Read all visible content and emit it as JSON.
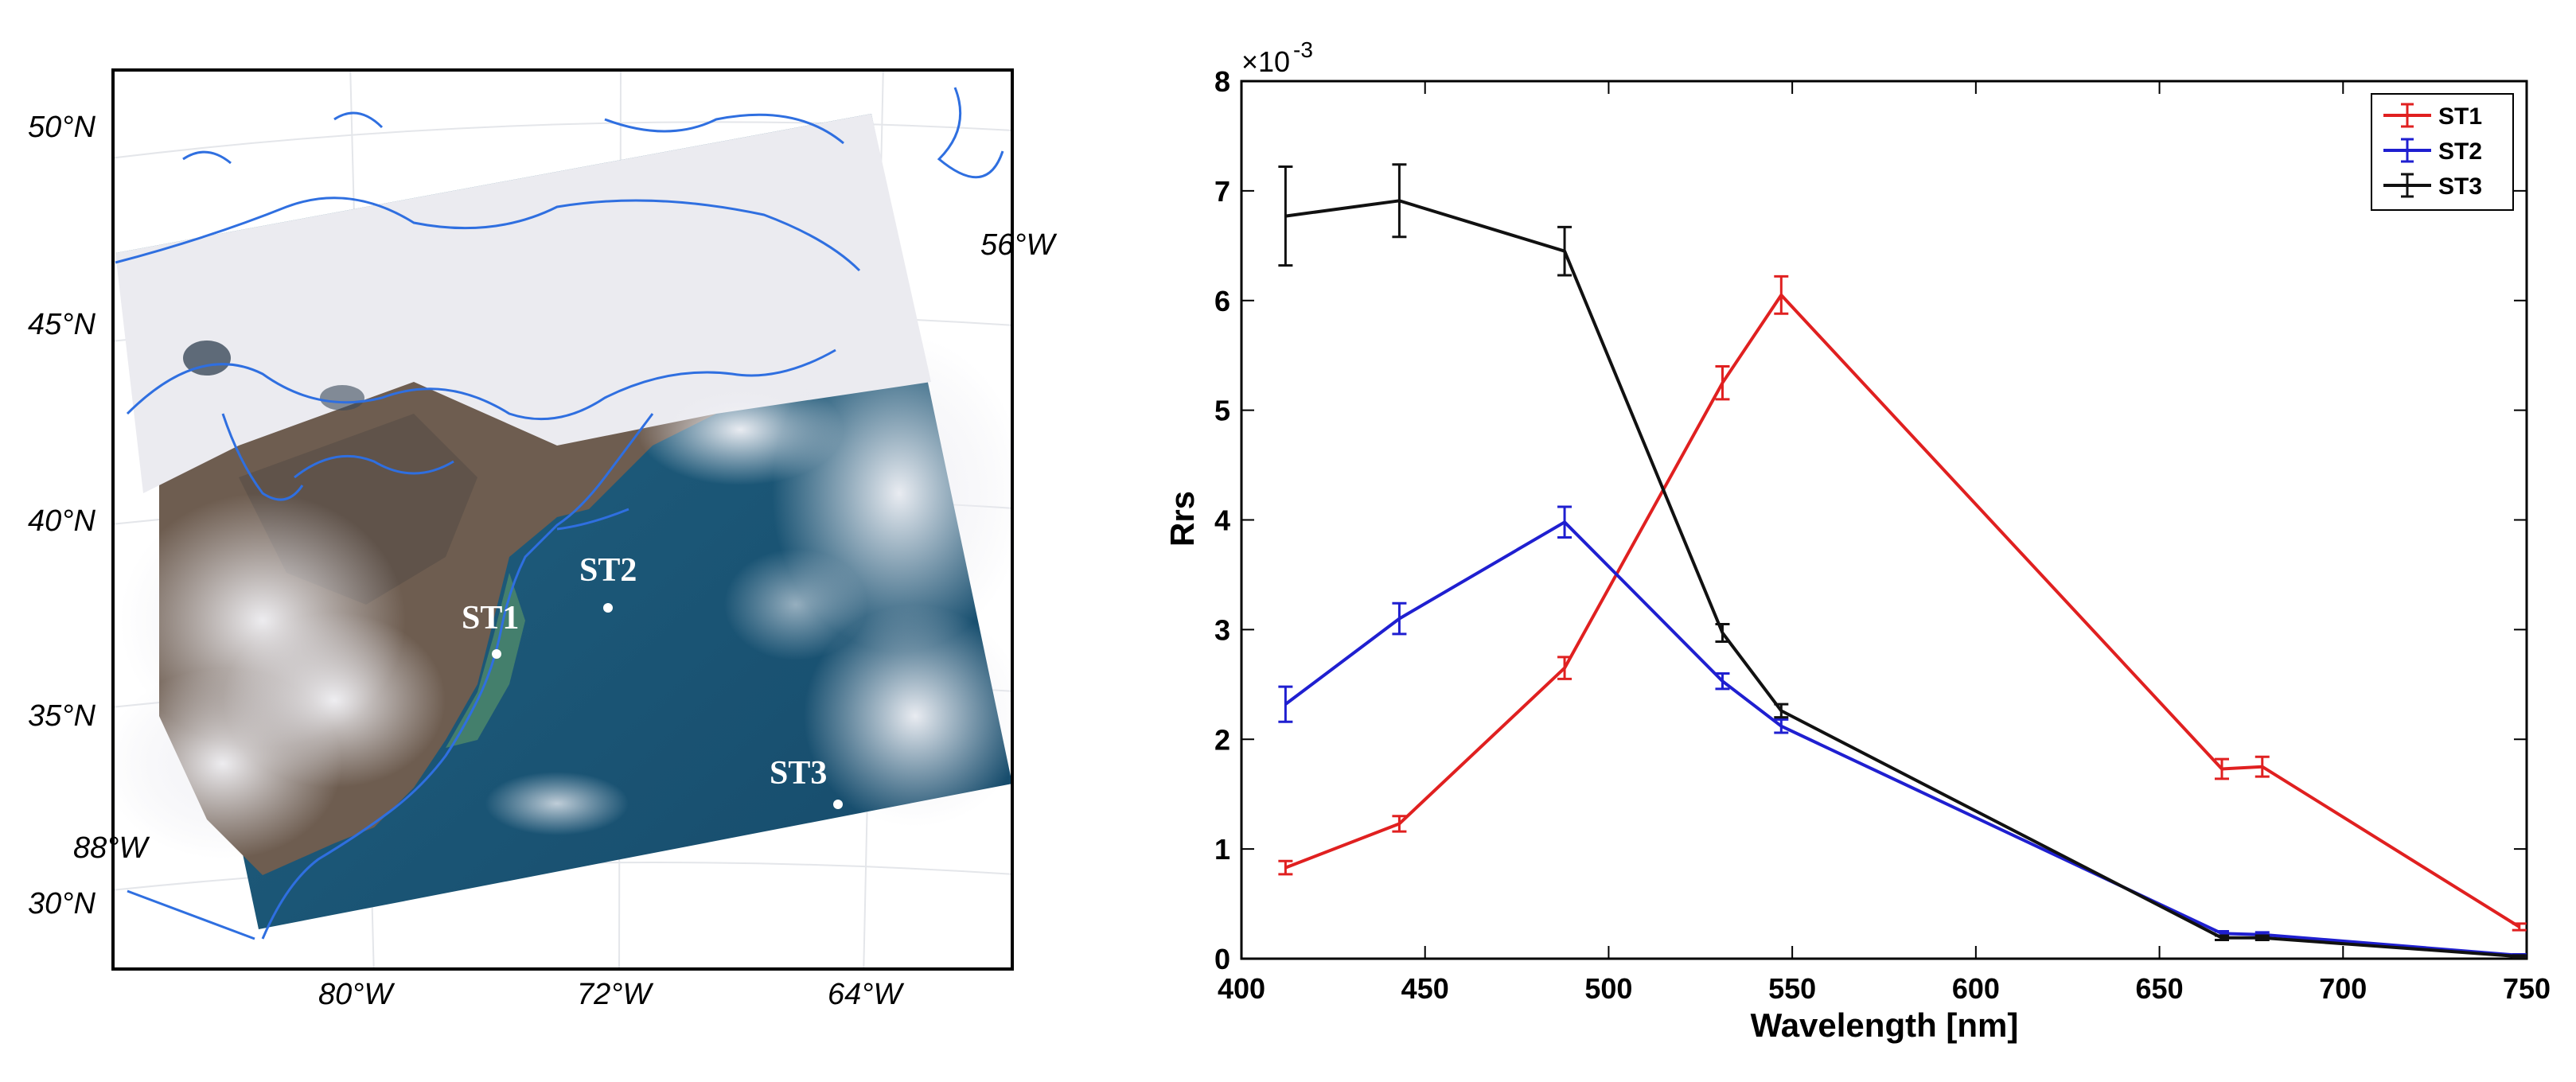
{
  "map": {
    "lat_labels": [
      "50°N",
      "45°N",
      "40°N",
      "35°N",
      "30°N"
    ],
    "lon_labels": [
      "80°W",
      "72°W",
      "64°W"
    ],
    "corner_labels": [
      "88°W",
      "56°W"
    ],
    "stations": [
      {
        "name": "ST1"
      },
      {
        "name": "ST2"
      },
      {
        "name": "ST3"
      }
    ],
    "colors": {
      "coastline": "#2f6fe0",
      "ocean": "#1f5a80",
      "land": "#6b5b4e",
      "cloud": "#eeeef2"
    }
  },
  "chart_data": {
    "type": "line",
    "xlabel": "Wavelength [nm]",
    "ylabel": "Rrs",
    "y_exponent_label": "×10",
    "y_exponent_power": "-3",
    "xlim": [
      400,
      750
    ],
    "ylim": [
      0,
      8
    ],
    "xticks": [
      "400",
      "450",
      "500",
      "550",
      "600",
      "650",
      "700",
      "750"
    ],
    "yticks": [
      "0",
      "1",
      "2",
      "3",
      "4",
      "5",
      "6",
      "7",
      "8"
    ],
    "legend_position": "top-right",
    "x": [
      412,
      443,
      488,
      531,
      547,
      667,
      678,
      748
    ],
    "series": [
      {
        "name": "ST1",
        "color": "#e02020",
        "values": [
          0.83,
          1.23,
          2.65,
          5.25,
          6.05,
          1.73,
          1.75,
          0.29
        ],
        "errors": [
          0.06,
          0.07,
          0.1,
          0.15,
          0.17,
          0.09,
          0.09,
          0.03
        ]
      },
      {
        "name": "ST2",
        "color": "#1f1fd0",
        "values": [
          2.32,
          3.1,
          3.98,
          2.53,
          2.12,
          0.23,
          0.22,
          0.03
        ],
        "errors": [
          0.16,
          0.14,
          0.14,
          0.07,
          0.06,
          0.02,
          0.02,
          0.01
        ]
      },
      {
        "name": "ST3",
        "color": "#111111",
        "values": [
          6.77,
          6.91,
          6.45,
          2.97,
          2.26,
          0.19,
          0.19,
          0.02
        ],
        "errors": [
          0.45,
          0.33,
          0.22,
          0.08,
          0.06,
          0.02,
          0.02,
          0.01
        ]
      }
    ]
  }
}
